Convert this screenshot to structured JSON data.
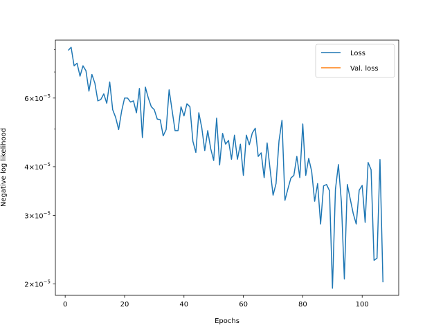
{
  "chart_data": {
    "type": "line",
    "xlabel": "Epochs",
    "ylabel": "Negative log likelihood",
    "yscale": "log",
    "xlim": [
      -3.3,
      112.3
    ],
    "ylim": [
      1.87e-05,
      8.45e-05
    ],
    "xticks": [
      {
        "value": 0,
        "label": "0"
      },
      {
        "value": 20,
        "label": "20"
      },
      {
        "value": 40,
        "label": "40"
      },
      {
        "value": 60,
        "label": "60"
      },
      {
        "value": 80,
        "label": "80"
      },
      {
        "value": 100,
        "label": "100"
      }
    ],
    "yticks": [
      {
        "value": 2e-05,
        "mantissa": "2",
        "base": "10",
        "exp": "−5"
      },
      {
        "value": 3e-05,
        "mantissa": "3",
        "base": "10",
        "exp": "−5"
      },
      {
        "value": 4e-05,
        "mantissa": "4",
        "base": "10",
        "exp": "−5"
      },
      {
        "value": 6e-05,
        "mantissa": "6",
        "base": "10",
        "exp": "−5"
      }
    ],
    "minor_yticks": [
      5e-05,
      7e-05,
      8e-05
    ],
    "legend_position": "top-right",
    "grid": false,
    "series": [
      {
        "name": "Loss",
        "color": "#1f77b4",
        "x": [
          1,
          2,
          3,
          4,
          5,
          6,
          7,
          8,
          9,
          10,
          11,
          12,
          13,
          14,
          15,
          16,
          17,
          18,
          19,
          20,
          21,
          22,
          23,
          24,
          25,
          26,
          27,
          28,
          29,
          30,
          31,
          32,
          33,
          34,
          35,
          36,
          37,
          38,
          39,
          40,
          41,
          42,
          43,
          44,
          45,
          46,
          47,
          48,
          49,
          50,
          51,
          52,
          53,
          54,
          55,
          56,
          57,
          58,
          59,
          60,
          61,
          62,
          63,
          64,
          65,
          66,
          67,
          68,
          69,
          70,
          71,
          72,
          73,
          74,
          75,
          76,
          77,
          78,
          79,
          80,
          81,
          82,
          83,
          84,
          85,
          86,
          87,
          88,
          89,
          90,
          91,
          92,
          93,
          94,
          95,
          96,
          97,
          98,
          99,
          100,
          101,
          102,
          103,
          104,
          105,
          106,
          107
        ],
        "y": [
          7.95e-05,
          8.1e-05,
          7.26e-05,
          7.37e-05,
          6.83e-05,
          7.26e-05,
          7.05e-05,
          6.25e-05,
          6.9e-05,
          6.55e-05,
          5.9e-05,
          5.95e-05,
          6.15e-05,
          5.82e-05,
          6.6e-05,
          5.6e-05,
          5.35e-05,
          4.98e-05,
          5.55e-05,
          6e-05,
          6e-05,
          5.86e-05,
          5.9e-05,
          5.5e-05,
          6.35e-05,
          4.75e-05,
          6.4e-05,
          6e-05,
          5.7e-05,
          5.6e-05,
          5.3e-05,
          5.28e-05,
          4.8e-05,
          4.98e-05,
          6.3e-05,
          5.58e-05,
          4.95e-05,
          4.95e-05,
          5.7e-05,
          5.4e-05,
          5.8e-05,
          5.7e-05,
          4.65e-05,
          4.35e-05,
          5.5e-05,
          5.03e-05,
          4.4e-05,
          4.95e-05,
          4.45e-05,
          4.15e-05,
          5.33e-05,
          4.04e-05,
          4.87e-05,
          4.57e-05,
          4.67e-05,
          4.18e-05,
          4.82e-05,
          4.18e-05,
          4.57e-05,
          3.8e-05,
          4.82e-05,
          4.55e-05,
          4.88e-05,
          5.02e-05,
          4.25e-05,
          4.34e-05,
          3.75e-05,
          4.6e-05,
          3.94e-05,
          3.38e-05,
          3.62e-05,
          4.66e-05,
          5.26e-05,
          3.28e-05,
          3.51e-05,
          3.74e-05,
          3.8e-05,
          4.25e-05,
          3.75e-05,
          5.15e-05,
          3.8e-05,
          4.2e-05,
          3.89e-05,
          3.26e-05,
          3.62e-05,
          2.85e-05,
          3.57e-05,
          3.6e-05,
          3.47e-05,
          1.95e-05,
          3.5e-05,
          4.05e-05,
          3.25e-05,
          2.06e-05,
          3.6e-05,
          3.3e-05,
          3.03e-05,
          2.85e-05,
          3.48e-05,
          3.58e-05,
          2.88e-05,
          4.1e-05,
          3.93e-05,
          2.3e-05,
          2.33e-05,
          4.17e-05,
          2.02e-05
        ]
      },
      {
        "name": "Val. loss",
        "color": "#ff7f0e",
        "x": [],
        "y": []
      }
    ]
  }
}
